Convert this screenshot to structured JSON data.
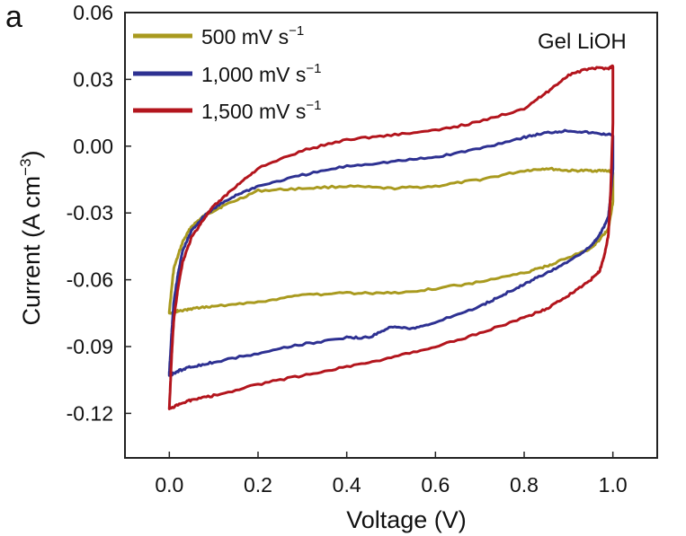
{
  "panel_label": "a",
  "chart_data": {
    "type": "line",
    "title": "",
    "annotation": "Gel LiOH",
    "xlabel": "Voltage (V)",
    "ylabel": {
      "main": "Current (A cm",
      "sup": "−3",
      "close": ")"
    },
    "xlim": [
      -0.1,
      1.1
    ],
    "ylim": [
      -0.14,
      0.06
    ],
    "xticks": [
      0.0,
      0.2,
      0.4,
      0.6,
      0.8,
      1.0
    ],
    "xtick_labels": [
      "0.0",
      "0.2",
      "0.4",
      "0.6",
      "0.8",
      "1.0"
    ],
    "yticks": [
      0.06,
      0.03,
      0.0,
      -0.03,
      -0.06,
      -0.09,
      -0.12
    ],
    "ytick_labels": [
      "0.06",
      "0.03",
      "0.00",
      "-0.03",
      "-0.06",
      "-0.09",
      "-0.12"
    ],
    "grid": false,
    "legend_position": "top-left",
    "series": [
      {
        "name": "500 mV s",
        "name_sup": "−1",
        "color": "#a99a1f",
        "x": [
          0.0,
          0.01,
          0.03,
          0.05,
          0.08,
          0.12,
          0.2,
          0.3,
          0.4,
          0.5,
          0.6,
          0.7,
          0.8,
          0.85,
          0.9,
          0.95,
          0.99,
          1.0,
          1.0,
          0.99,
          0.97,
          0.95,
          0.9,
          0.85,
          0.8,
          0.7,
          0.6,
          0.5,
          0.4,
          0.3,
          0.2,
          0.1,
          0.05,
          0.02,
          0.0
        ],
        "y": [
          -0.074,
          -0.055,
          -0.043,
          -0.036,
          -0.031,
          -0.027,
          -0.02,
          -0.019,
          -0.018,
          -0.019,
          -0.018,
          -0.015,
          -0.011,
          -0.01,
          -0.011,
          -0.011,
          -0.011,
          -0.012,
          -0.025,
          -0.037,
          -0.042,
          -0.046,
          -0.05,
          -0.054,
          -0.057,
          -0.061,
          -0.064,
          -0.066,
          -0.066,
          -0.067,
          -0.07,
          -0.072,
          -0.073,
          -0.074,
          -0.075
        ]
      },
      {
        "name": "1,000 mV s",
        "name_sup": "−1",
        "color": "#2e3192",
        "x": [
          0.0,
          0.005,
          0.01,
          0.02,
          0.03,
          0.05,
          0.08,
          0.1,
          0.15,
          0.2,
          0.3,
          0.4,
          0.5,
          0.6,
          0.7,
          0.8,
          0.85,
          0.9,
          0.95,
          1.0,
          1.0,
          0.995,
          0.99,
          0.97,
          0.95,
          0.9,
          0.85,
          0.8,
          0.75,
          0.7,
          0.6,
          0.55,
          0.5,
          0.45,
          0.4,
          0.3,
          0.2,
          0.1,
          0.05,
          0.02,
          0.0
        ],
        "y": [
          -0.102,
          -0.085,
          -0.07,
          -0.057,
          -0.047,
          -0.038,
          -0.031,
          -0.028,
          -0.022,
          -0.018,
          -0.013,
          -0.009,
          -0.007,
          -0.005,
          -0.001,
          0.004,
          0.006,
          0.007,
          0.006,
          0.005,
          -0.01,
          -0.022,
          -0.032,
          -0.04,
          -0.045,
          -0.052,
          -0.057,
          -0.062,
          -0.067,
          -0.072,
          -0.079,
          -0.082,
          -0.081,
          -0.086,
          -0.086,
          -0.089,
          -0.093,
          -0.097,
          -0.099,
          -0.101,
          -0.103
        ]
      },
      {
        "name": "1,500 mV s",
        "name_sup": "−1",
        "color": "#b3151d",
        "x": [
          0.0,
          0.005,
          0.01,
          0.02,
          0.03,
          0.05,
          0.08,
          0.1,
          0.15,
          0.2,
          0.3,
          0.4,
          0.5,
          0.6,
          0.7,
          0.8,
          0.85,
          0.9,
          0.95,
          0.99,
          1.0,
          1.0,
          0.995,
          0.99,
          0.98,
          0.97,
          0.95,
          0.9,
          0.85,
          0.8,
          0.7,
          0.6,
          0.5,
          0.4,
          0.3,
          0.2,
          0.1,
          0.05,
          0.02,
          0.0
        ],
        "y": [
          -0.118,
          -0.095,
          -0.078,
          -0.063,
          -0.052,
          -0.041,
          -0.032,
          -0.027,
          -0.018,
          -0.01,
          -0.002,
          0.003,
          0.005,
          0.007,
          0.011,
          0.017,
          0.024,
          0.032,
          0.035,
          0.035,
          0.036,
          0.01,
          -0.02,
          -0.04,
          -0.05,
          -0.056,
          -0.06,
          -0.067,
          -0.073,
          -0.077,
          -0.084,
          -0.09,
          -0.095,
          -0.099,
          -0.103,
          -0.107,
          -0.112,
          -0.114,
          -0.116,
          -0.118
        ]
      }
    ]
  }
}
